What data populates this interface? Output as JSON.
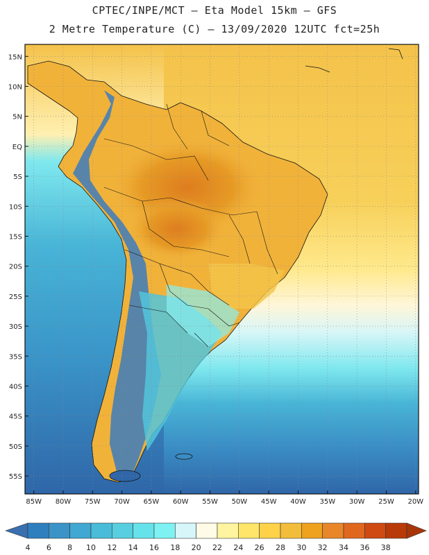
{
  "title_line1": "CPTEC/INPE/MCT  –  Eta Model 15km  – GFS",
  "title_line2": "2 Metre Temperature (C) – 13/09/2020 12UTC fct=25h",
  "lat_labels": [
    "15N",
    "10N",
    "5N",
    "EQ",
    "5S",
    "10S",
    "15S",
    "20S",
    "25S",
    "30S",
    "35S",
    "40S",
    "45S",
    "50S",
    "55S"
  ],
  "lon_labels": [
    "85W",
    "80W",
    "75W",
    "70W",
    "65W",
    "60W",
    "55W",
    "50W",
    "45W",
    "40W",
    "35W",
    "30W",
    "25W",
    "20W"
  ],
  "colorbar": {
    "labels": [
      "4",
      "6",
      "8",
      "10",
      "12",
      "14",
      "16",
      "18",
      "20",
      "22",
      "24",
      "26",
      "28",
      "30",
      "32",
      "34",
      "36",
      "38"
    ],
    "colors": [
      "#3a6fb0",
      "#2f7fbf",
      "#3a94c8",
      "#40a8d2",
      "#48bcd8",
      "#58cfe0",
      "#66e2ea",
      "#7ef2f2",
      "#d6f6fa",
      "#fffbe6",
      "#fff4a0",
      "#ffe56a",
      "#ffd24a",
      "#f2bd3a",
      "#eea21e",
      "#e9862a",
      "#e0681e",
      "#cf4a12",
      "#b83a08",
      "#a8350a"
    ]
  },
  "field_colors": {
    "ocean_cold": "#2f66a8",
    "ocean_cool": "#3e8ec6",
    "ocean_mid": "#48b4d6",
    "ocean_warm": "#62d4e4",
    "ocean_cyan": "#86ecf0",
    "ocean_pale": "#d8f6f8",
    "ocean_cream": "#fff6d8",
    "ocean_yellow": "#ffe98c",
    "ocean_gold": "#f7cf55",
    "land_hot": "#e69a25",
    "land_hotter": "#de7d1f",
    "andes": "#3d7bbd"
  }
}
